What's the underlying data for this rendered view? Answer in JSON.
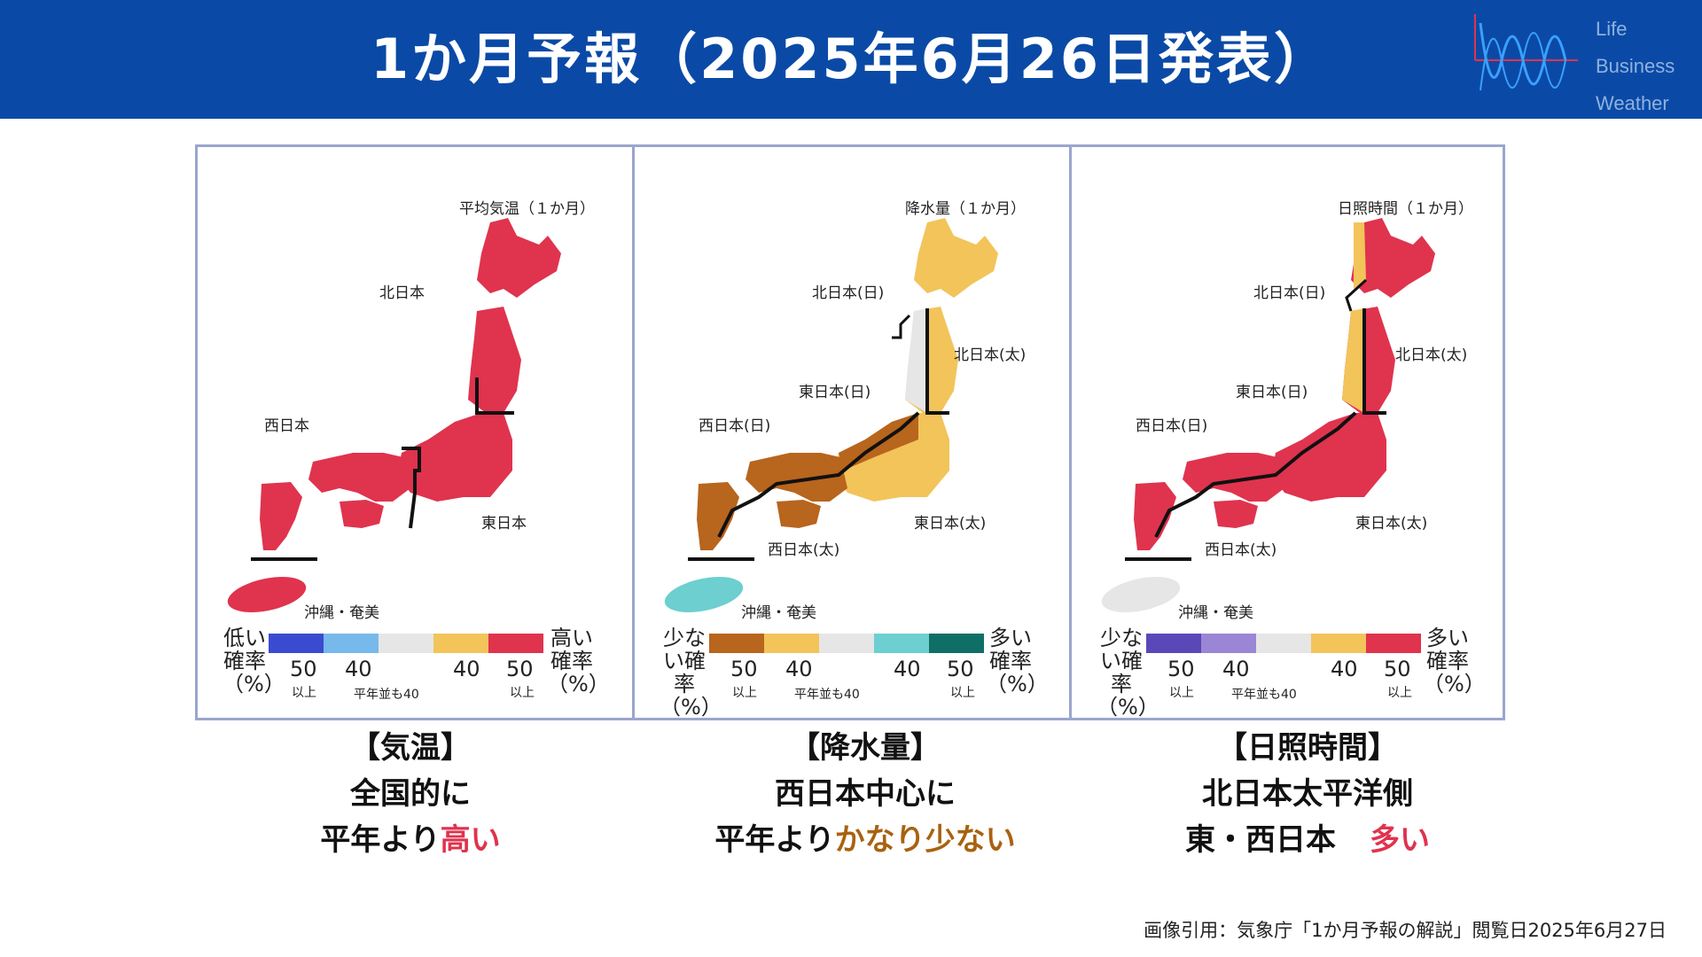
{
  "header": {
    "title": "1か月予報（2025年6月26日発表）"
  },
  "logo": {
    "line1": "Life",
    "line2": "Business",
    "line3": "Weather"
  },
  "panels": [
    {
      "map_title": "平均気温（１か月）",
      "regions": {
        "north": "北日本",
        "west": "西日本",
        "east": "東日本",
        "okinawa": "沖縄・奄美"
      },
      "legend": {
        "left": "低い確率（%）",
        "right": "高い確率（%）"
      }
    },
    {
      "map_title": "降水量（１か月）",
      "regions": {
        "north_sea": "北日本(日)",
        "north_pacific": "北日本(太)",
        "east_sea": "東日本(日)",
        "west_sea": "西日本(日)",
        "west_pacific": "西日本(太)",
        "east_pacific": "東日本(太)",
        "okinawa": "沖縄・奄美"
      },
      "legend": {
        "left": "少ない確率（%）",
        "right": "多い確率（%）"
      }
    },
    {
      "map_title": "日照時間（１か月）",
      "regions": {
        "north_sea": "北日本(日)",
        "north_pacific": "北日本(太)",
        "east_sea": "東日本(日)",
        "west_sea": "西日本(日)",
        "west_pacific": "西日本(太)",
        "east_pacific": "東日本(太)",
        "okinawa": "沖縄・奄美"
      },
      "legend": {
        "left": "少ない確率（%）",
        "right": "多い確率（%）"
      }
    }
  ],
  "legend_common": {
    "n50": "50",
    "n40": "40",
    "ijo": "以上",
    "normal": "平年並も40"
  },
  "captions": [
    {
      "line1": "【気温】",
      "line2": "全国的に",
      "line3a": "平年より",
      "line3b": "高い",
      "line3c": ""
    },
    {
      "line1": "【降水量】",
      "line2": "西日本中心に",
      "line3a": "平年より",
      "line3b": "かなり少ない",
      "line3c": ""
    },
    {
      "line1": "【日照時間】",
      "line2": "北日本太平洋側",
      "line3a": "東・西日本",
      "line3b": "多い",
      "line3c": ""
    }
  ],
  "credit": "画像引用：気象庁「1か月予報の解説」閲覧日2025年6月27日",
  "colors": {
    "header_bg": "#0a4aa6",
    "high_red": "#e0334e",
    "low_brown": "#b8651d",
    "normal_gray": "#e6e6e6",
    "yellow": "#f2c45a",
    "teal": "#6dcfcf",
    "dark_teal": "#0f6f66",
    "blue": "#3b4bd0",
    "light_blue": "#76b9ea",
    "purple": "#5b48b8",
    "light_purple": "#9b86d6",
    "emph_red": "#e0334e",
    "emph_brown": "#a8620f"
  }
}
